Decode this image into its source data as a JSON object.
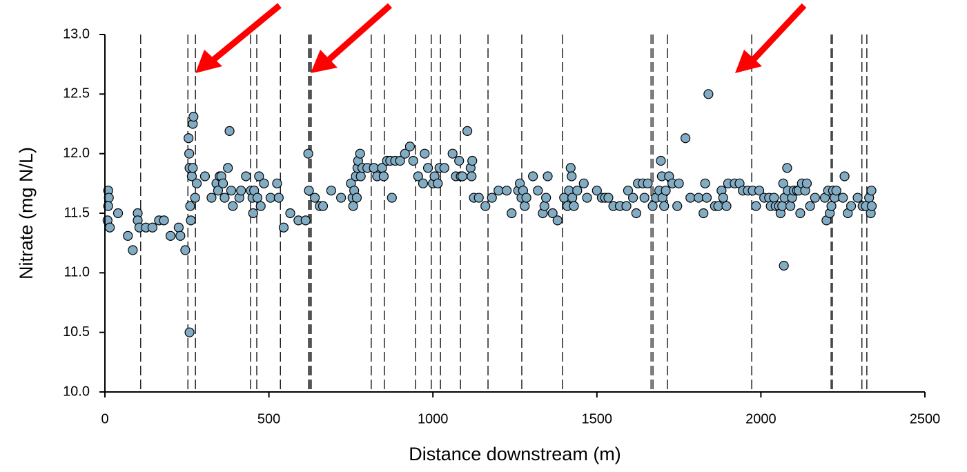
{
  "chart_data": {
    "type": "scatter",
    "xlabel": "Distance downstream (m)",
    "ylabel": "Nitrate (mg N/L)",
    "xlim": [
      0,
      2500
    ],
    "xticks": [
      0,
      500,
      1000,
      1500,
      2000,
      2500
    ],
    "ylim": [
      10,
      13
    ],
    "yticks": [
      {
        "value": 10,
        "label": "10.0"
      },
      {
        "value": 10.5,
        "label": "10.5"
      },
      {
        "value": 11,
        "label": "11.0"
      },
      {
        "value": 11.5,
        "label": "11.5"
      },
      {
        "value": 12,
        "label": "12.0"
      },
      {
        "value": 12.5,
        "label": "12.5"
      },
      {
        "value": 13,
        "label": "13.0"
      }
    ],
    "grid": false,
    "color": "#82acc4",
    "vlines": [
      109,
      253,
      276,
      444,
      463,
      535,
      621,
      625,
      629,
      812,
      852,
      947,
      995,
      1023,
      1084,
      1168,
      1271,
      1395,
      1665,
      1671,
      1715,
      1972,
      2214,
      2218,
      2308,
      2323
    ],
    "x": [
      10,
      12,
      10,
      8,
      15,
      40,
      70,
      85,
      100,
      100,
      105,
      125,
      145,
      165,
      180,
      200,
      225,
      230,
      245,
      258,
      255,
      257,
      258,
      260,
      262,
      265,
      268,
      270,
      268,
      275,
      280,
      305,
      325,
      340,
      345,
      350,
      355,
      360,
      365,
      375,
      380,
      385,
      390,
      410,
      415,
      430,
      445,
      450,
      452,
      455,
      465,
      470,
      475,
      485,
      505,
      525,
      530,
      545,
      565,
      590,
      612,
      620,
      622,
      640,
      655,
      665,
      690,
      720,
      750,
      755,
      757,
      760,
      765,
      768,
      770,
      772,
      778,
      780,
      785,
      800,
      820,
      830,
      845,
      850,
      860,
      870,
      875,
      885,
      900,
      915,
      930,
      940,
      955,
      970,
      975,
      985,
      1000,
      1005,
      1015,
      1020,
      1035,
      1060,
      1070,
      1080,
      1085,
      1090,
      1105,
      1115,
      1118,
      1120,
      1125,
      1140,
      1160,
      1180,
      1200,
      1225,
      1240,
      1260,
      1265,
      1270,
      1275,
      1280,
      1285,
      1305,
      1320,
      1335,
      1340,
      1345,
      1350,
      1365,
      1380,
      1400,
      1410,
      1415,
      1420,
      1423,
      1425,
      1430,
      1440,
      1460,
      1470,
      1500,
      1515,
      1525,
      1535,
      1550,
      1570,
      1590,
      1595,
      1610,
      1620,
      1625,
      1640,
      1645,
      1655,
      1670,
      1680,
      1690,
      1695,
      1698,
      1700,
      1705,
      1710,
      1720,
      1730,
      1745,
      1750,
      1770,
      1785,
      1810,
      1825,
      1830,
      1835,
      1840,
      1860,
      1870,
      1880,
      1885,
      1895,
      1900,
      1920,
      1935,
      1945,
      1960,
      1975,
      1985,
      1995,
      2010,
      2025,
      2030,
      2040,
      2045,
      2055,
      2060,
      2065,
      2068,
      2070,
      2072,
      2080,
      2082,
      2090,
      2095,
      2100,
      2110,
      2115,
      2120,
      2125,
      2135,
      2140,
      2150,
      2165,
      2195,
      2200,
      2205,
      2210,
      2215,
      2220,
      2225,
      2230,
      2250,
      2255,
      2265,
      2275,
      2295,
      2310,
      2320,
      2330,
      2335,
      2337,
      2338
    ],
    "values": [
      11.69,
      11.63,
      11.56,
      11.44,
      11.38,
      11.5,
      11.31,
      11.19,
      11.5,
      11.44,
      11.38,
      11.38,
      11.38,
      11.44,
      11.44,
      11.31,
      11.38,
      11.31,
      11.19,
      10.5,
      12.13,
      12.0,
      11.88,
      11.56,
      11.44,
      11.81,
      12.25,
      12.31,
      11.88,
      11.63,
      11.75,
      11.81,
      11.63,
      11.75,
      11.69,
      11.81,
      11.81,
      11.75,
      11.63,
      11.88,
      12.19,
      11.69,
      11.56,
      11.63,
      11.69,
      11.81,
      11.69,
      11.63,
      11.5,
      11.69,
      11.63,
      11.81,
      11.56,
      11.75,
      11.63,
      11.75,
      11.63,
      11.38,
      11.5,
      11.44,
      11.44,
      12.0,
      11.69,
      11.63,
      11.56,
      11.56,
      11.69,
      11.63,
      11.75,
      11.63,
      11.56,
      11.69,
      11.81,
      11.63,
      11.88,
      11.94,
      12.0,
      11.81,
      11.88,
      11.88,
      11.88,
      11.81,
      11.88,
      11.81,
      11.94,
      11.94,
      11.63,
      11.94,
      11.94,
      12.0,
      12.06,
      11.94,
      11.81,
      11.75,
      12.0,
      11.88,
      11.75,
      11.81,
      11.75,
      11.88,
      11.88,
      12.0,
      11.81,
      11.94,
      11.81,
      11.81,
      12.19,
      11.88,
      11.81,
      11.94,
      11.63,
      11.63,
      11.56,
      11.63,
      11.69,
      11.69,
      11.5,
      11.69,
      11.75,
      11.63,
      11.69,
      11.56,
      11.63,
      11.81,
      11.69,
      11.5,
      11.56,
      11.63,
      11.81,
      11.5,
      11.44,
      11.63,
      11.56,
      11.69,
      11.88,
      11.81,
      11.63,
      11.56,
      11.69,
      11.75,
      11.63,
      11.69,
      11.63,
      11.63,
      11.63,
      11.56,
      11.56,
      11.56,
      11.69,
      11.63,
      11.5,
      11.75,
      11.75,
      11.63,
      11.75,
      11.56,
      11.63,
      11.69,
      11.94,
      11.81,
      11.63,
      11.56,
      11.69,
      11.81,
      11.75,
      11.56,
      11.75,
      12.13,
      11.63,
      11.63,
      11.5,
      11.75,
      11.63,
      12.5,
      11.56,
      11.56,
      11.69,
      11.63,
      11.56,
      11.75,
      11.75,
      11.75,
      11.69,
      11.69,
      11.69,
      11.56,
      11.69,
      11.63,
      11.63,
      11.56,
      11.63,
      11.56,
      11.56,
      11.5,
      11.56,
      11.75,
      11.06,
      11.63,
      11.88,
      11.69,
      11.56,
      11.63,
      11.69,
      11.69,
      11.69,
      11.5,
      11.75,
      11.69,
      11.75,
      11.56,
      11.63,
      11.63,
      11.44,
      11.69,
      11.5,
      11.56,
      11.69,
      11.63,
      11.69,
      11.63,
      11.81,
      11.5,
      11.56,
      11.63,
      11.56,
      11.56,
      11.63,
      11.5,
      11.69,
      11.56
    ]
  }
}
